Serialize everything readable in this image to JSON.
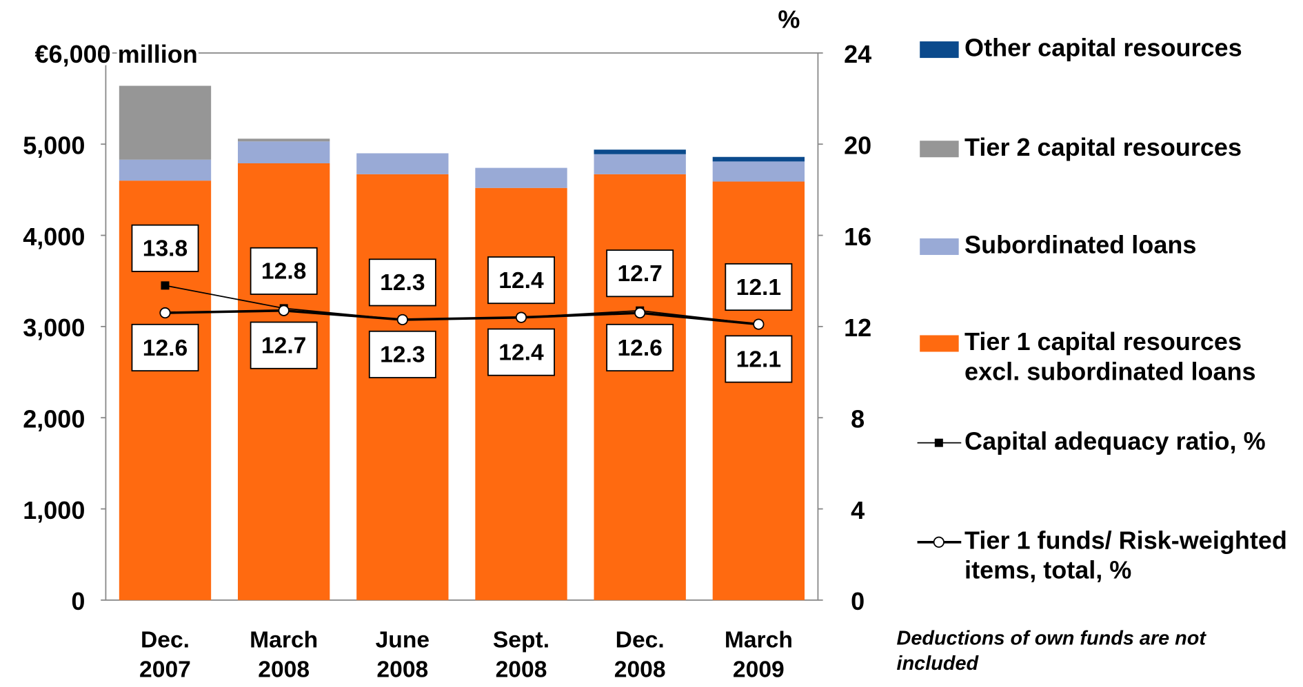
{
  "chart_data": {
    "type": "bar",
    "stacked": true,
    "categories": [
      "Dec. 2007",
      "March 2008",
      "June 2008",
      "Sept. 2008",
      "Dec. 2008",
      "March 2009"
    ],
    "series": [
      {
        "name": "Tier 1 capital resources excl. subordinated loans",
        "color": "#ff6a10",
        "values": [
          4600,
          4790,
          4670,
          4520,
          4670,
          4590
        ]
      },
      {
        "name": "Subordinated loans",
        "color": "#99aad6",
        "values": [
          230,
          240,
          230,
          220,
          220,
          220
        ]
      },
      {
        "name": "Tier 2 capital resources",
        "color": "#969696",
        "values": [
          810,
          30,
          0,
          0,
          0,
          0
        ]
      },
      {
        "name": "Other capital resources",
        "color": "#0b4a8c",
        "values": [
          0,
          0,
          0,
          0,
          50,
          50
        ]
      },
      {
        "name": "Capital adequacy ratio, %",
        "type": "line",
        "axis": "y2",
        "color": "#000000",
        "marker": "square",
        "values": [
          13.8,
          12.8,
          12.3,
          12.4,
          12.7,
          12.1
        ]
      },
      {
        "name": "Tier 1 funds/ Risk-weighted items, total, %",
        "type": "line",
        "axis": "y2",
        "color": "#000000",
        "marker": "circle",
        "values": [
          12.6,
          12.7,
          12.3,
          12.4,
          12.6,
          12.1
        ]
      }
    ],
    "ylim": [
      0,
      6000
    ],
    "yticks": [
      0,
      {
        "value": 1000,
        "label": "1,000"
      },
      {
        "value": 2000,
        "label": "2,000"
      },
      {
        "value": 3000,
        "label": "3,000"
      },
      {
        "value": 4000,
        "label": "4,000"
      },
      {
        "value": 5000,
        "label": "5,000"
      },
      {
        "value": 6000,
        "label": "€6,000 million"
      }
    ],
    "y2_label": "%",
    "y2lim": [
      0,
      24
    ],
    "y2ticks": [
      0,
      4,
      8,
      12,
      16,
      20,
      24
    ],
    "legend": "right",
    "note": "Deductions of own funds are not included"
  }
}
